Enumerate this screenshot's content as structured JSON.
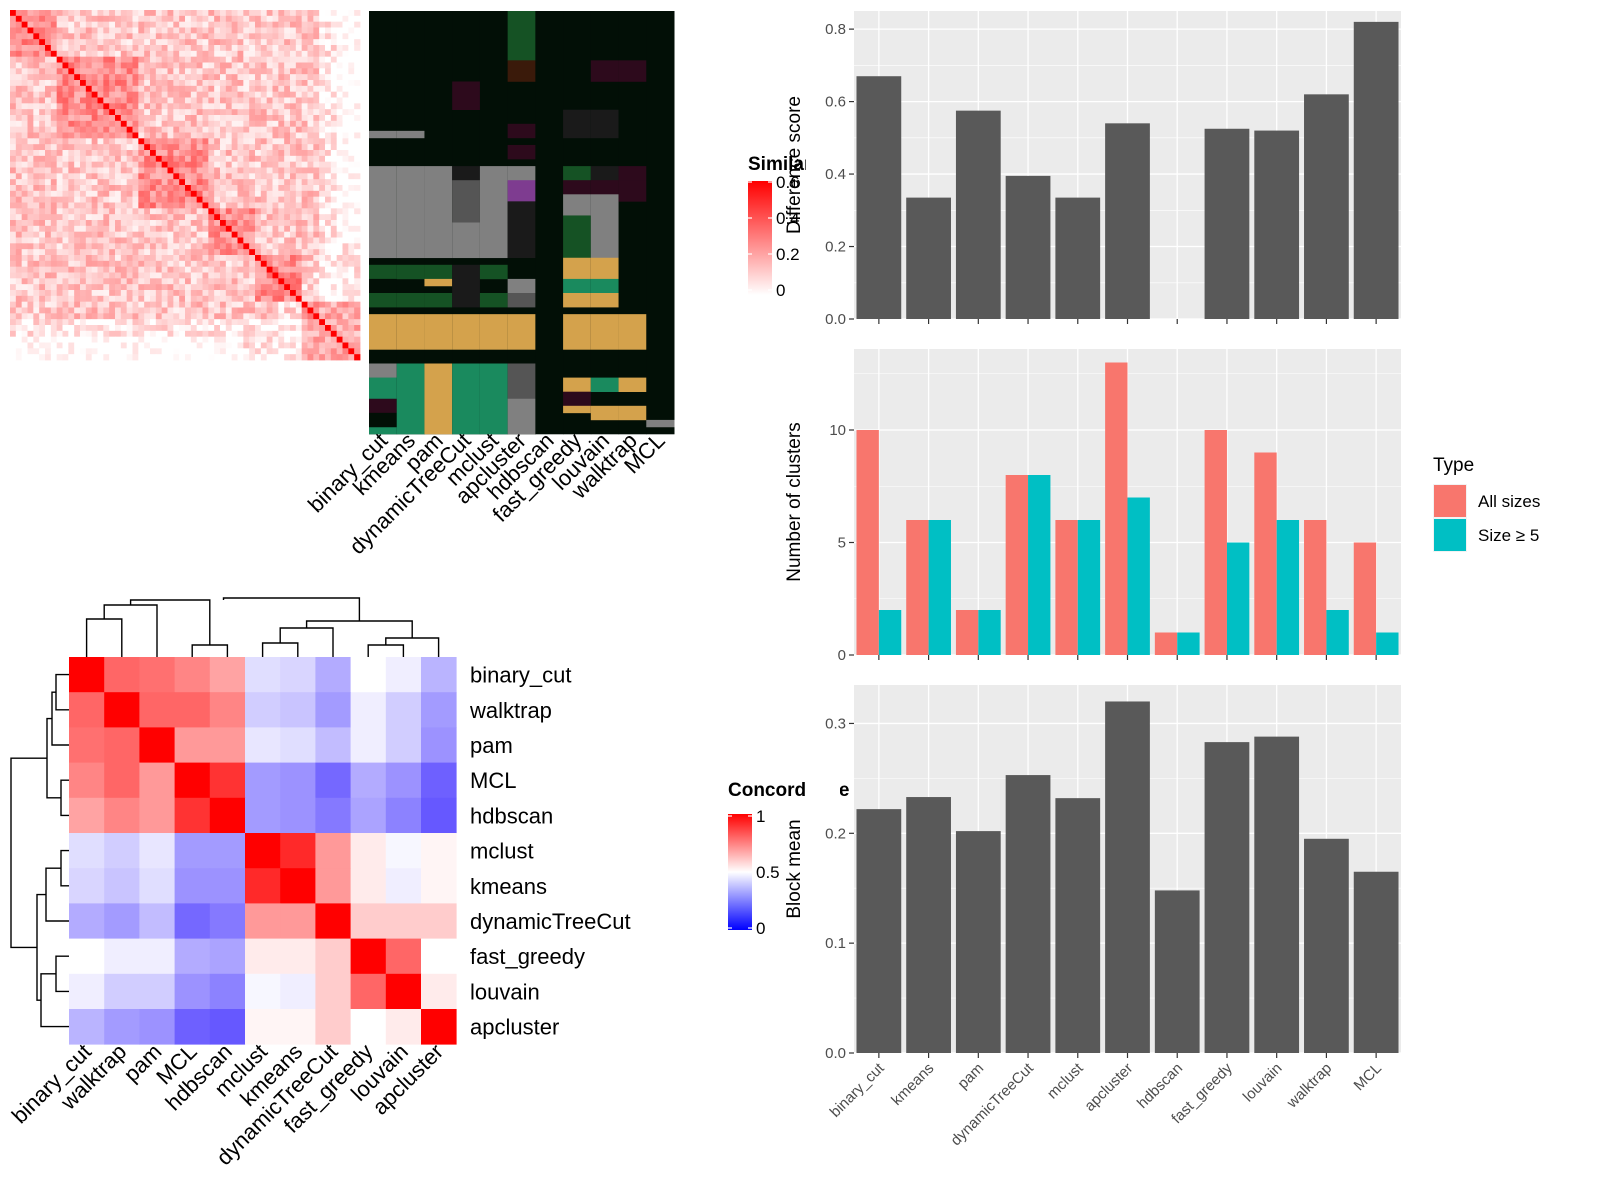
{
  "colors": {
    "panel_bg": "#ebebeb",
    "grid": "#ffffff",
    "bar_dark": "#595959",
    "all_sizes": "#f8766d",
    "size_ge5": "#00bfc4",
    "sim_high": "#ff0000",
    "conc_high": "#ff0000",
    "conc_mid": "#ffffff",
    "conc_low": "#0000ff",
    "tile_colors": [
      "#020f06",
      "#808080",
      "#d4a24c",
      "#1a8a5e",
      "#155224",
      "#1a1a1a",
      "#2d0a1c",
      "#7e3c90",
      "#3a1a0a",
      "#555555"
    ]
  },
  "similarity_heatmap": {
    "legend_title": "Similarity",
    "legend_ticks": [
      "0",
      "0.2",
      "0.4",
      "0.6"
    ],
    "size": 60
  },
  "method_tiles": {
    "methods": [
      "binary_cut",
      "kmeans",
      "pam",
      "dynamicTreeCut",
      "mclust",
      "apcluster",
      "hdbscan",
      "fast_greedy",
      "louvain",
      "walktrap",
      "MCL"
    ],
    "rows": 60
  },
  "concordance": {
    "legend_title": "Concordance",
    "legend_ticks": [
      "0",
      "0.5",
      "1"
    ],
    "row_labels": [
      "binary_cut",
      "walktrap",
      "pam",
      "MCL",
      "hdbscan",
      "mclust",
      "kmeans",
      "dynamicTreeCut",
      "fast_greedy",
      "louvain",
      "apcluster"
    ],
    "col_labels": [
      "binary_cut",
      "walktrap",
      "pam",
      "MCL",
      "hdbscan",
      "mclust",
      "kmeans",
      "dynamicTreeCut",
      "fast_greedy",
      "louvain",
      "apcluster"
    ],
    "matrix": [
      [
        1.0,
        0.8,
        0.78,
        0.74,
        0.68,
        0.42,
        0.4,
        0.3,
        0.5,
        0.46,
        0.32
      ],
      [
        0.8,
        1.0,
        0.8,
        0.8,
        0.74,
        0.38,
        0.36,
        0.26,
        0.46,
        0.38,
        0.26
      ],
      [
        0.78,
        0.8,
        1.0,
        0.7,
        0.7,
        0.44,
        0.42,
        0.34,
        0.46,
        0.38,
        0.24
      ],
      [
        0.74,
        0.8,
        0.7,
        1.0,
        0.9,
        0.26,
        0.24,
        0.14,
        0.3,
        0.24,
        0.12
      ],
      [
        0.68,
        0.74,
        0.7,
        0.9,
        1.0,
        0.26,
        0.24,
        0.18,
        0.28,
        0.2,
        0.1
      ],
      [
        0.42,
        0.38,
        0.44,
        0.26,
        0.26,
        1.0,
        0.92,
        0.7,
        0.54,
        0.48,
        0.52
      ],
      [
        0.4,
        0.36,
        0.42,
        0.24,
        0.24,
        0.92,
        1.0,
        0.7,
        0.54,
        0.46,
        0.52
      ],
      [
        0.3,
        0.26,
        0.34,
        0.14,
        0.18,
        0.7,
        0.7,
        1.0,
        0.6,
        0.6,
        0.6
      ],
      [
        0.5,
        0.46,
        0.46,
        0.3,
        0.28,
        0.54,
        0.54,
        0.6,
        1.0,
        0.8,
        0.5
      ],
      [
        0.46,
        0.38,
        0.38,
        0.24,
        0.2,
        0.48,
        0.46,
        0.6,
        0.8,
        1.0,
        0.54
      ],
      [
        0.32,
        0.26,
        0.24,
        0.12,
        0.1,
        0.52,
        0.52,
        0.6,
        0.5,
        0.54,
        1.0
      ]
    ]
  },
  "chart_data": [
    {
      "type": "bar",
      "categories": [
        "binary_cut",
        "kmeans",
        "pam",
        "dynamicTreeCut",
        "mclust",
        "apcluster",
        "hdbscan",
        "fast_greedy",
        "louvain",
        "walktrap",
        "MCL"
      ],
      "values": [
        0.67,
        0.335,
        0.575,
        0.395,
        0.335,
        0.54,
        null,
        0.525,
        0.52,
        0.62,
        0.82
      ],
      "title": "",
      "xlabel": "",
      "ylabel": "Difference score",
      "ylim": [
        0,
        0.85
      ],
      "yticks": [
        0.0,
        0.2,
        0.4,
        0.6,
        0.8
      ],
      "ytick_labels": [
        "0.0",
        "0.2",
        "0.4",
        "0.6",
        "0.8"
      ],
      "grid": true
    },
    {
      "type": "bar",
      "categories": [
        "binary_cut",
        "kmeans",
        "pam",
        "dynamicTreeCut",
        "mclust",
        "apcluster",
        "hdbscan",
        "fast_greedy",
        "louvain",
        "walktrap",
        "MCL"
      ],
      "series": [
        {
          "name": "All sizes",
          "values": [
            10,
            6,
            2,
            8,
            6,
            13,
            1,
            10,
            9,
            6,
            5
          ]
        },
        {
          "name": "Size ≥ 5",
          "values": [
            2,
            6,
            2,
            8,
            6,
            7,
            1,
            5,
            6,
            2,
            1
          ]
        }
      ],
      "title": "",
      "xlabel": "",
      "ylabel": "Number of clusters",
      "ylim": [
        0,
        13.6
      ],
      "yticks": [
        0,
        5,
        10
      ],
      "ytick_labels": [
        "0",
        "5",
        "10"
      ],
      "legend_title": "Type",
      "legend_position": "right",
      "grid": true
    },
    {
      "type": "bar",
      "categories": [
        "binary_cut",
        "kmeans",
        "pam",
        "dynamicTreeCut",
        "mclust",
        "apcluster",
        "hdbscan",
        "fast_greedy",
        "louvain",
        "walktrap",
        "MCL"
      ],
      "values": [
        0.222,
        0.233,
        0.202,
        0.253,
        0.232,
        0.32,
        0.148,
        0.283,
        0.288,
        0.195,
        0.165
      ],
      "title": "",
      "xlabel": "",
      "ylabel": "Block mean",
      "ylim": [
        0,
        0.335
      ],
      "yticks": [
        0.0,
        0.1,
        0.2,
        0.3
      ],
      "ytick_labels": [
        "0.0",
        "0.1",
        "0.2",
        "0.3"
      ],
      "grid": true
    }
  ]
}
